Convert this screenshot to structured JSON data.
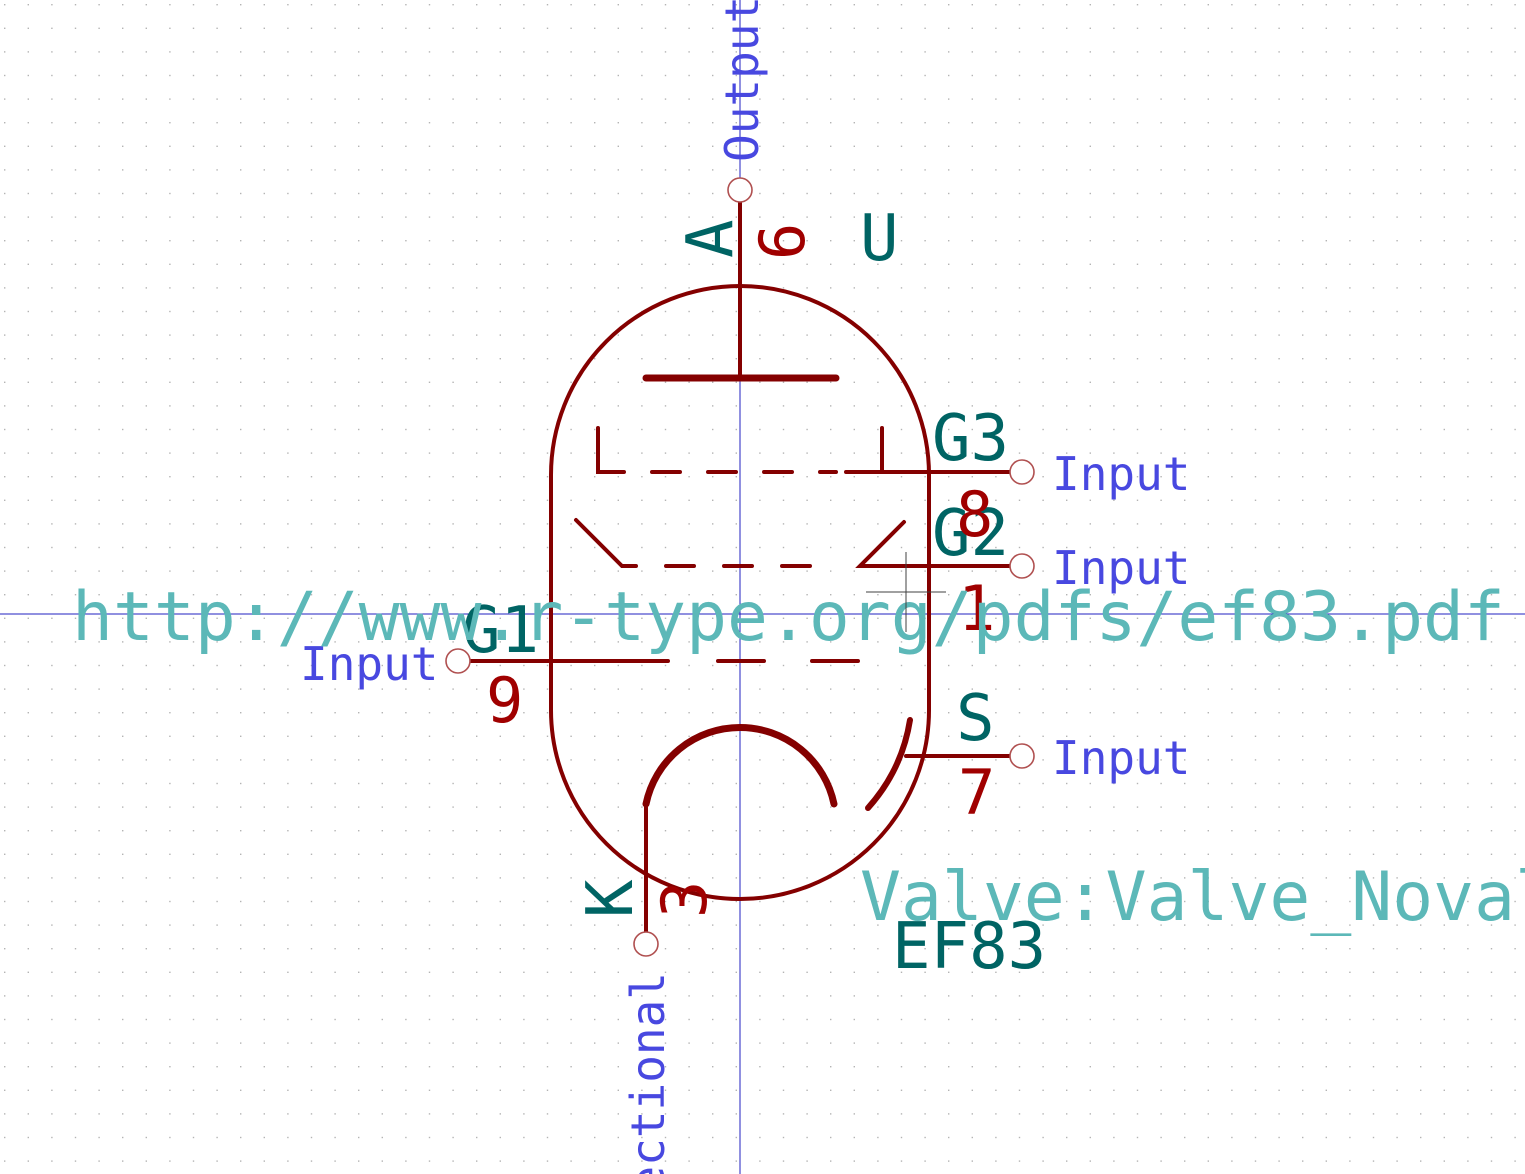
{
  "colors": {
    "background": "#ffffff",
    "grid": "#b4b4b4",
    "axis": "#2020c0",
    "body": "#840000",
    "pin_name": "#006464",
    "pin_number": "#a00000",
    "pin_type": "#4848e0",
    "field": "#5cb8b8",
    "value": "#006464",
    "ref": "#006464"
  },
  "symbol": {
    "reference": "U",
    "value": "EF83",
    "footprint": "Valve:Valve_Noval_",
    "datasheet": "http://www.r-type.org/pdfs/ef83.pdf"
  },
  "pins": [
    {
      "id": "anode",
      "name": "A",
      "number": "6",
      "type": "Output"
    },
    {
      "id": "g3",
      "name": "G3",
      "number": "8",
      "type": "Input"
    },
    {
      "id": "g2",
      "name": "G2",
      "number": "1",
      "type": "Input"
    },
    {
      "id": "g1",
      "name": "G1",
      "number": "9",
      "type": "Input"
    },
    {
      "id": "shield",
      "name": "S",
      "number": "7",
      "type": "Input"
    },
    {
      "id": "cathode",
      "name": "K",
      "number": "3",
      "type": "ectional"
    }
  ]
}
